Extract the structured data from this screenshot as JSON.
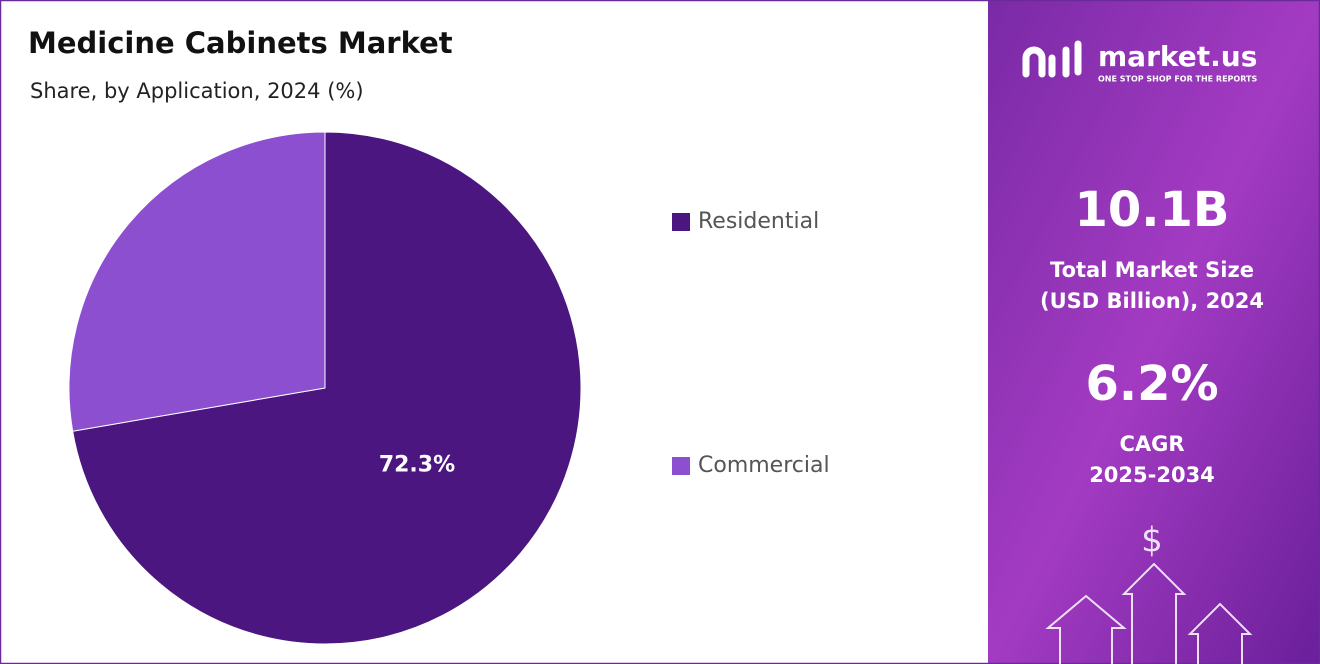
{
  "chart_data": {
    "type": "pie",
    "title": "Medicine Cabinets Market",
    "subtitle": "Share, by Application, 2024 (%)",
    "categories": [
      "Residential",
      "Commercial"
    ],
    "values": [
      72.3,
      27.7
    ],
    "value_labels": [
      "72.3%",
      null
    ],
    "colors": [
      "#4b1680",
      "#8b4fd0"
    ],
    "legend": "right"
  },
  "panel": {
    "logo": "market.us",
    "tagline": "ONE STOP SHOP FOR THE REPORTS",
    "stats": [
      {
        "value": "10.1B",
        "lines": [
          "Total Market Size",
          "(USD Billion), 2024"
        ]
      },
      {
        "value": "6.2%",
        "lines": [
          "CAGR",
          "2025-2034"
        ]
      }
    ]
  }
}
